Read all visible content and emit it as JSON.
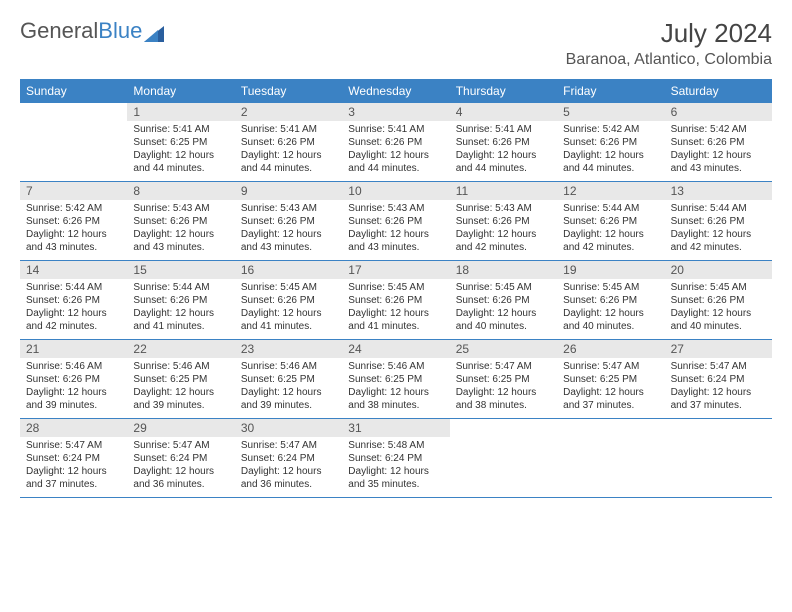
{
  "logo": {
    "text_gray": "General",
    "text_blue": "Blue"
  },
  "header": {
    "month_title": "July 2024",
    "location": "Baranoa, Atlantico, Colombia"
  },
  "colors": {
    "header_bar": "#3b82c4",
    "day_num_bg": "#e8e8e8",
    "week_border": "#3b82c4",
    "text": "#333333"
  },
  "weekdays": [
    "Sunday",
    "Monday",
    "Tuesday",
    "Wednesday",
    "Thursday",
    "Friday",
    "Saturday"
  ],
  "first_day_offset": 1,
  "days": [
    {
      "n": "1",
      "sunrise": "5:41 AM",
      "sunset": "6:25 PM",
      "daylight": "12 hours and 44 minutes."
    },
    {
      "n": "2",
      "sunrise": "5:41 AM",
      "sunset": "6:26 PM",
      "daylight": "12 hours and 44 minutes."
    },
    {
      "n": "3",
      "sunrise": "5:41 AM",
      "sunset": "6:26 PM",
      "daylight": "12 hours and 44 minutes."
    },
    {
      "n": "4",
      "sunrise": "5:41 AM",
      "sunset": "6:26 PM",
      "daylight": "12 hours and 44 minutes."
    },
    {
      "n": "5",
      "sunrise": "5:42 AM",
      "sunset": "6:26 PM",
      "daylight": "12 hours and 44 minutes."
    },
    {
      "n": "6",
      "sunrise": "5:42 AM",
      "sunset": "6:26 PM",
      "daylight": "12 hours and 43 minutes."
    },
    {
      "n": "7",
      "sunrise": "5:42 AM",
      "sunset": "6:26 PM",
      "daylight": "12 hours and 43 minutes."
    },
    {
      "n": "8",
      "sunrise": "5:43 AM",
      "sunset": "6:26 PM",
      "daylight": "12 hours and 43 minutes."
    },
    {
      "n": "9",
      "sunrise": "5:43 AM",
      "sunset": "6:26 PM",
      "daylight": "12 hours and 43 minutes."
    },
    {
      "n": "10",
      "sunrise": "5:43 AM",
      "sunset": "6:26 PM",
      "daylight": "12 hours and 43 minutes."
    },
    {
      "n": "11",
      "sunrise": "5:43 AM",
      "sunset": "6:26 PM",
      "daylight": "12 hours and 42 minutes."
    },
    {
      "n": "12",
      "sunrise": "5:44 AM",
      "sunset": "6:26 PM",
      "daylight": "12 hours and 42 minutes."
    },
    {
      "n": "13",
      "sunrise": "5:44 AM",
      "sunset": "6:26 PM",
      "daylight": "12 hours and 42 minutes."
    },
    {
      "n": "14",
      "sunrise": "5:44 AM",
      "sunset": "6:26 PM",
      "daylight": "12 hours and 42 minutes."
    },
    {
      "n": "15",
      "sunrise": "5:44 AM",
      "sunset": "6:26 PM",
      "daylight": "12 hours and 41 minutes."
    },
    {
      "n": "16",
      "sunrise": "5:45 AM",
      "sunset": "6:26 PM",
      "daylight": "12 hours and 41 minutes."
    },
    {
      "n": "17",
      "sunrise": "5:45 AM",
      "sunset": "6:26 PM",
      "daylight": "12 hours and 41 minutes."
    },
    {
      "n": "18",
      "sunrise": "5:45 AM",
      "sunset": "6:26 PM",
      "daylight": "12 hours and 40 minutes."
    },
    {
      "n": "19",
      "sunrise": "5:45 AM",
      "sunset": "6:26 PM",
      "daylight": "12 hours and 40 minutes."
    },
    {
      "n": "20",
      "sunrise": "5:45 AM",
      "sunset": "6:26 PM",
      "daylight": "12 hours and 40 minutes."
    },
    {
      "n": "21",
      "sunrise": "5:46 AM",
      "sunset": "6:26 PM",
      "daylight": "12 hours and 39 minutes."
    },
    {
      "n": "22",
      "sunrise": "5:46 AM",
      "sunset": "6:25 PM",
      "daylight": "12 hours and 39 minutes."
    },
    {
      "n": "23",
      "sunrise": "5:46 AM",
      "sunset": "6:25 PM",
      "daylight": "12 hours and 39 minutes."
    },
    {
      "n": "24",
      "sunrise": "5:46 AM",
      "sunset": "6:25 PM",
      "daylight": "12 hours and 38 minutes."
    },
    {
      "n": "25",
      "sunrise": "5:47 AM",
      "sunset": "6:25 PM",
      "daylight": "12 hours and 38 minutes."
    },
    {
      "n": "26",
      "sunrise": "5:47 AM",
      "sunset": "6:25 PM",
      "daylight": "12 hours and 37 minutes."
    },
    {
      "n": "27",
      "sunrise": "5:47 AM",
      "sunset": "6:24 PM",
      "daylight": "12 hours and 37 minutes."
    },
    {
      "n": "28",
      "sunrise": "5:47 AM",
      "sunset": "6:24 PM",
      "daylight": "12 hours and 37 minutes."
    },
    {
      "n": "29",
      "sunrise": "5:47 AM",
      "sunset": "6:24 PM",
      "daylight": "12 hours and 36 minutes."
    },
    {
      "n": "30",
      "sunrise": "5:47 AM",
      "sunset": "6:24 PM",
      "daylight": "12 hours and 36 minutes."
    },
    {
      "n": "31",
      "sunrise": "5:48 AM",
      "sunset": "6:24 PM",
      "daylight": "12 hours and 35 minutes."
    }
  ],
  "labels": {
    "sunrise_prefix": "Sunrise: ",
    "sunset_prefix": "Sunset: ",
    "daylight_prefix": "Daylight: "
  }
}
